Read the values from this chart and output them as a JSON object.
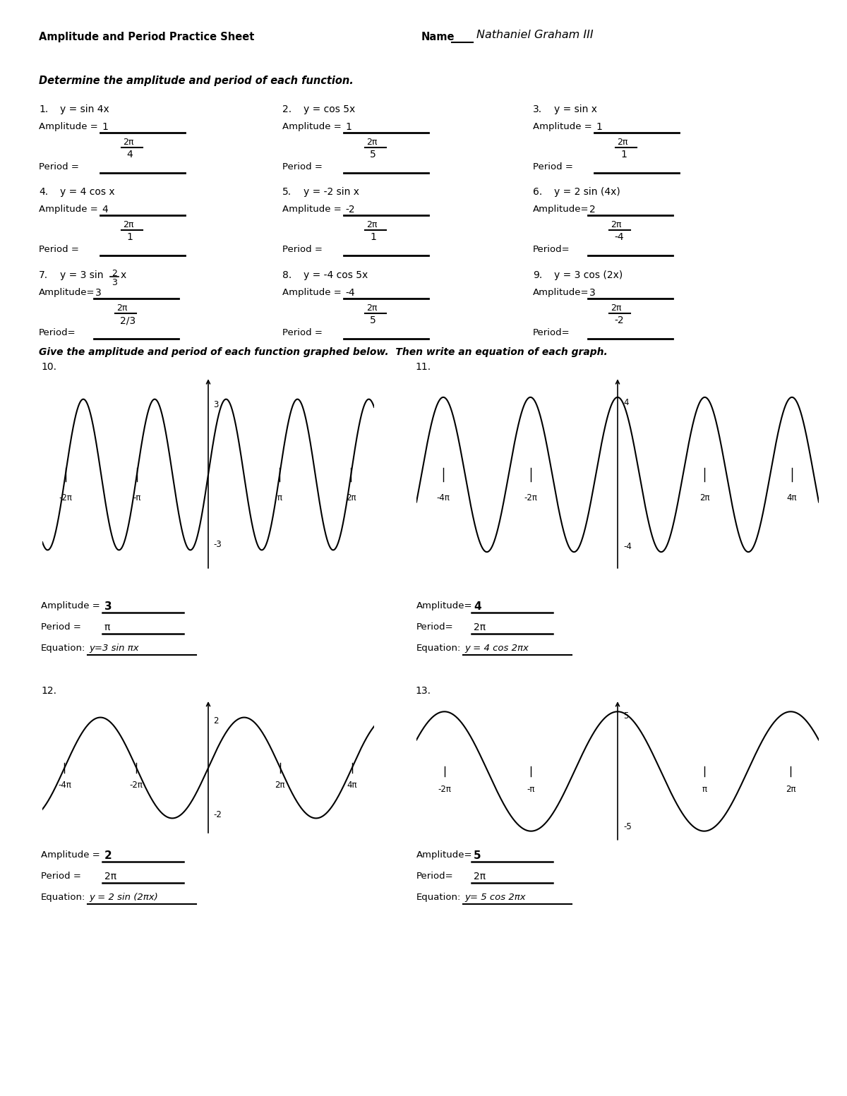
{
  "title": "Amplitude and Period Practice Sheet",
  "name_label": "Name",
  "name_value": "Nathaniel Graham III",
  "section1_header": "Determine the amplitude and period of each function.",
  "section2_header": "Give the amplitude and period of each function graphed below.  Then write an equation of each graph.",
  "bg_color": "#ffffff",
  "problems": [
    {
      "num": "1.",
      "func": "y = sin 4x",
      "amp": "1",
      "pnum": "2π",
      "pden": "4",
      "sp7": false
    },
    {
      "num": "2.",
      "func": "y = cos 5x",
      "amp": "1",
      "pnum": "2π",
      "pden": "5",
      "sp7": false
    },
    {
      "num": "3.",
      "func": "y = sin x",
      "amp": "1",
      "pnum": "2π",
      "pden": "1",
      "sp7": false
    },
    {
      "num": "4.",
      "func": "y = 4 cos x",
      "amp": "4",
      "pnum": "2π",
      "pden": "1",
      "sp7": false
    },
    {
      "num": "5.",
      "func": "y = -2 sin x",
      "amp": "-2",
      "pnum": "2π",
      "pden": "1",
      "sp7": false
    },
    {
      "num": "6.",
      "func": "y = 2 sin (4x)",
      "amp": "2",
      "pnum": "2π",
      "pden": "-4",
      "sp7": false
    },
    {
      "num": "7.",
      "func": "y = 3 sin",
      "amp": "3",
      "pnum": "2π",
      "pden": "2/3",
      "sp7": true,
      "frac_num": "2",
      "frac_den": "3",
      "func_suffix": "x"
    },
    {
      "num": "8.",
      "func": "y = -4 cos 5x",
      "amp": "-4",
      "pnum": "2π",
      "pden": "5",
      "sp7": false
    },
    {
      "num": "9.",
      "func": "y = 3 cos (2x)",
      "amp": "3",
      "pnum": "2π",
      "pden": "-2",
      "sp7": false
    }
  ],
  "graphs": [
    {
      "num": "10.",
      "func_type": "sin",
      "amplitude": 3,
      "b": 2.0,
      "xlim": [
        -7.3,
        7.3
      ],
      "ylim": [
        -4.0,
        4.0
      ],
      "xticks": [
        -6.28318,
        -3.14159,
        3.14159,
        6.28318
      ],
      "xtick_labels": [
        "-2π",
        "-π",
        "π",
        "2π"
      ],
      "ytop": 3,
      "ybot": -3,
      "amp_ans": "3",
      "period_ans": "π",
      "eq": "y=3 sin πx"
    },
    {
      "num": "11.",
      "func_type": "cos",
      "amplitude": 4,
      "b": 1.0,
      "xlim": [
        -14.5,
        14.5
      ],
      "ylim": [
        -5.2,
        5.2
      ],
      "xticks": [
        -12.56637,
        -6.28318,
        6.28318,
        12.56637
      ],
      "xtick_labels": [
        "-4π",
        "-2π",
        "2π",
        "4π"
      ],
      "ytop": 4,
      "ybot": -4,
      "amp_ans": "4",
      "period_ans": "2π",
      "eq": "y = 4 cos 2πx"
    },
    {
      "num": "12.",
      "func_type": "sin",
      "amplitude": 2,
      "b": 0.5,
      "xlim": [
        -14.5,
        14.5
      ],
      "ylim": [
        -2.8,
        2.8
      ],
      "xticks": [
        -12.56637,
        -6.28318,
        6.28318,
        12.56637
      ],
      "xtick_labels": [
        "-4π",
        "-2π",
        "2π",
        "4π"
      ],
      "ytop": 2,
      "ybot": -2,
      "amp_ans": "2",
      "period_ans": "2π",
      "eq": "y = 2 sin (2πx)"
    },
    {
      "num": "13.",
      "func_type": "cos",
      "amplitude": 5,
      "b": 1.0,
      "xlim": [
        -7.3,
        7.3
      ],
      "ylim": [
        -6.2,
        6.2
      ],
      "xticks": [
        -6.28318,
        -3.14159,
        3.14159,
        6.28318
      ],
      "xtick_labels": [
        "-2π",
        "-π",
        "π",
        "2π"
      ],
      "ytop": 5,
      "ybot": -5,
      "amp_ans": "5",
      "period_ans": "2π",
      "eq": "y= 5 cos 2πx"
    }
  ]
}
